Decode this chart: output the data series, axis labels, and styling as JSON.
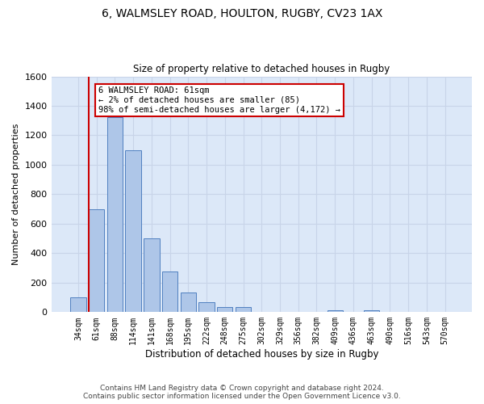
{
  "title1": "6, WALMSLEY ROAD, HOULTON, RUGBY, CV23 1AX",
  "title2": "Size of property relative to detached houses in Rugby",
  "xlabel": "Distribution of detached houses by size in Rugby",
  "ylabel": "Number of detached properties",
  "categories": [
    "34sqm",
    "61sqm",
    "88sqm",
    "114sqm",
    "141sqm",
    "168sqm",
    "195sqm",
    "222sqm",
    "248sqm",
    "275sqm",
    "302sqm",
    "329sqm",
    "356sqm",
    "382sqm",
    "409sqm",
    "436sqm",
    "463sqm",
    "490sqm",
    "516sqm",
    "543sqm",
    "570sqm"
  ],
  "values": [
    100,
    700,
    1325,
    1100,
    500,
    275,
    135,
    70,
    35,
    35,
    0,
    0,
    0,
    0,
    15,
    0,
    15,
    0,
    0,
    0,
    0
  ],
  "bar_color": "#aec6e8",
  "bar_edge_color": "#5080c0",
  "highlight_bar_index": 1,
  "highlight_line_color": "#cc0000",
  "ylim": [
    0,
    1600
  ],
  "yticks": [
    0,
    200,
    400,
    600,
    800,
    1000,
    1200,
    1400,
    1600
  ],
  "annotation_text": "6 WALMSLEY ROAD: 61sqm\n← 2% of detached houses are smaller (85)\n98% of semi-detached houses are larger (4,172) →",
  "annotation_box_color": "#ffffff",
  "annotation_box_edge": "#cc0000",
  "grid_color": "#c8d4e8",
  "background_color": "#dce8f8",
  "footer1": "Contains HM Land Registry data © Crown copyright and database right 2024.",
  "footer2": "Contains public sector information licensed under the Open Government Licence v3.0."
}
